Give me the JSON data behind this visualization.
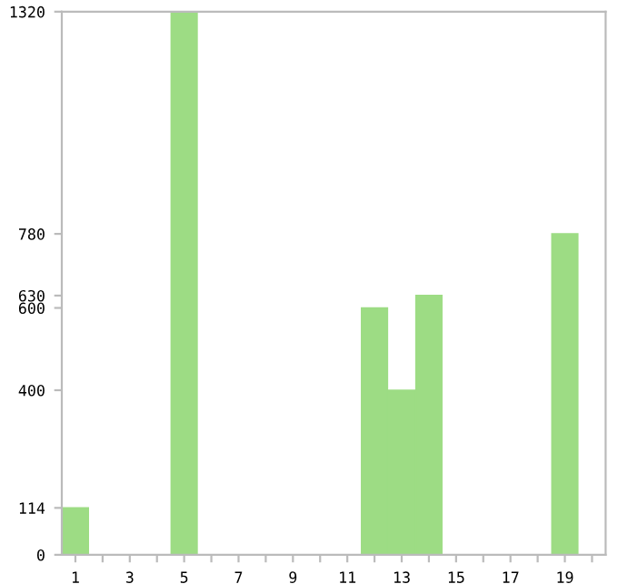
{
  "chart_data": {
    "type": "bar",
    "categories": [
      "1",
      null,
      "3",
      null,
      "5",
      null,
      "7",
      null,
      "9",
      null,
      "11",
      null,
      "13",
      null,
      "15",
      null,
      "17",
      null,
      "19",
      null
    ],
    "values": [
      114,
      0,
      0,
      0,
      1320,
      0,
      0,
      0,
      0,
      0,
      0,
      600,
      400,
      630,
      0,
      0,
      0,
      0,
      780,
      0
    ],
    "color": "#9ddc84",
    "ylim": [
      0,
      1320
    ],
    "yticks": [
      0,
      114,
      400,
      600,
      630,
      780,
      1320
    ],
    "grid": false,
    "legend": false
  }
}
